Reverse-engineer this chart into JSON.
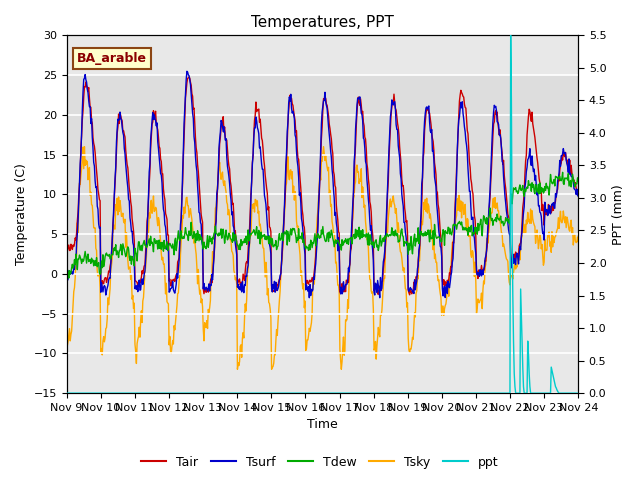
{
  "title": "Temperatures, PPT",
  "xlabel": "Time",
  "ylabel_left": "Temperature (C)",
  "ylabel_right": "PPT (mm)",
  "ylim_left": [
    -15,
    30
  ],
  "ylim_right": [
    0.0,
    5.5
  ],
  "yticks_left": [
    -15,
    -10,
    -5,
    0,
    5,
    10,
    15,
    20,
    25,
    30
  ],
  "yticks_right": [
    0.0,
    0.5,
    1.0,
    1.5,
    2.0,
    2.5,
    3.0,
    3.5,
    4.0,
    4.5,
    5.0,
    5.5
  ],
  "colors": {
    "Tair": "#cc0000",
    "Tsurf": "#0000cc",
    "Tdew": "#00aa00",
    "Tsky": "#ffaa00",
    "ppt": "#00cccc"
  },
  "annotation_text": "BA_arable",
  "background_color": "#ffffff",
  "plot_bg_color": "#e8e8e8",
  "grid_color": "#ffffff",
  "title_fontsize": 11,
  "label_fontsize": 9,
  "tick_fontsize": 8,
  "legend_fontsize": 9,
  "x_tick_labels": [
    "Nov 9",
    "Nov 10",
    "Nov 11",
    "Nov 12",
    "Nov 13",
    "Nov 14",
    "Nov 15",
    "Nov 16",
    "Nov 17",
    "Nov 18",
    "Nov 19",
    "Nov 20",
    "Nov 21",
    "Nov 22",
    "Nov 23",
    "Nov 24"
  ],
  "x_tick_positions": [
    0,
    1,
    2,
    3,
    4,
    5,
    6,
    7,
    8,
    9,
    10,
    11,
    12,
    13,
    14,
    15
  ],
  "shading_ylim": [
    0,
    25
  ],
  "shading_color": "#d4d4d4"
}
